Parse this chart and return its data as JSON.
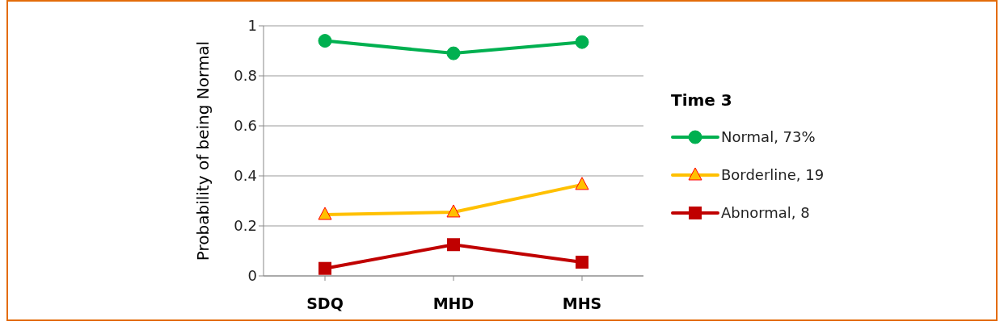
{
  "chart_data": {
    "type": "line",
    "ylabel": "Probability of being Normal",
    "legend_title": "Time 3",
    "categories": [
      "SDQ",
      "MHD",
      "MHS"
    ],
    "series": [
      {
        "name": "Normal, 73%",
        "color": "#00b050",
        "marker": "circle",
        "values": [
          0.94,
          0.89,
          0.935
        ]
      },
      {
        "name": "Borderline, 19",
        "color": "#ffc000",
        "marker": "triangle",
        "values": [
          0.245,
          0.255,
          0.365
        ]
      },
      {
        "name": "Abnormal, 8",
        "color": "#c00000",
        "marker": "square",
        "values": [
          0.03,
          0.125,
          0.055
        ]
      }
    ],
    "ylim": [
      0,
      1
    ],
    "yticks": [
      0,
      0.2,
      0.4,
      0.6,
      0.8,
      1
    ],
    "grid": "y",
    "legend": "right"
  }
}
